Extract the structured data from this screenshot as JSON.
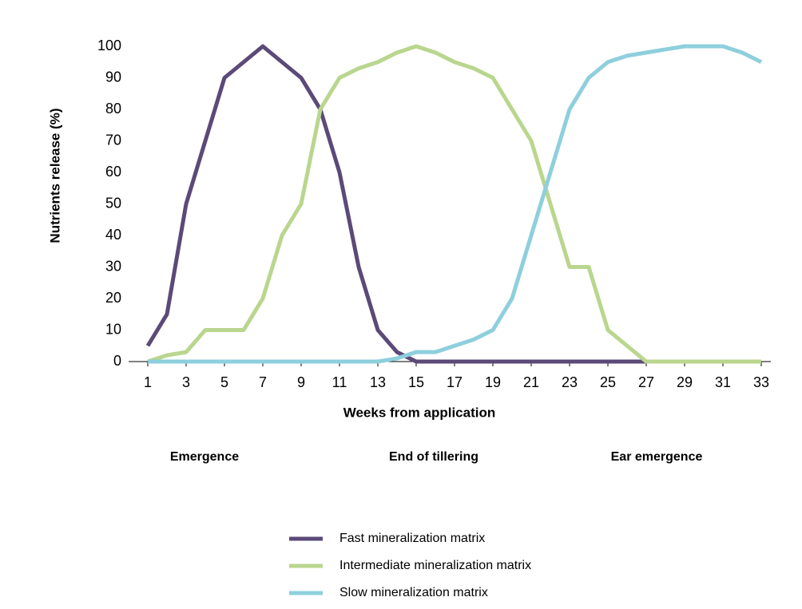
{
  "chart_data": {
    "type": "line",
    "x": [
      1,
      2,
      3,
      4,
      5,
      6,
      7,
      8,
      9,
      10,
      11,
      12,
      13,
      14,
      15,
      16,
      17,
      18,
      19,
      20,
      21,
      22,
      23,
      24,
      25,
      26,
      27,
      28,
      29,
      30,
      31,
      32,
      33
    ],
    "series": [
      {
        "name": "Fast mineralization matrix",
        "color": "#5b4a78",
        "values": [
          5,
          15,
          50,
          70,
          90,
          95,
          100,
          95,
          90,
          80,
          60,
          30,
          10,
          3,
          0,
          0,
          0,
          0,
          0,
          0,
          0,
          0,
          0,
          0,
          0,
          0,
          0,
          null,
          null,
          null,
          null,
          null,
          null
        ]
      },
      {
        "name": "Intermediate mineralization matrix",
        "color": "#b9d68e",
        "values": [
          0,
          2,
          3,
          10,
          10,
          10,
          20,
          40,
          50,
          80,
          90,
          93,
          95,
          98,
          100,
          98,
          95,
          93,
          90,
          80,
          70,
          50,
          30,
          30,
          10,
          5,
          0,
          0,
          0,
          0,
          0,
          0,
          0
        ]
      },
      {
        "name": "Slow mineralization matrix",
        "color": "#8ecfdd",
        "values": [
          0,
          0,
          0,
          0,
          0,
          0,
          0,
          0,
          0,
          0,
          0,
          0,
          0,
          1,
          3,
          3,
          5,
          7,
          10,
          20,
          40,
          60,
          80,
          90,
          95,
          97,
          98,
          99,
          100,
          100,
          100,
          98,
          95
        ]
      }
    ],
    "xlim": [
      1,
      33
    ],
    "xticks": [
      1,
      3,
      5,
      7,
      9,
      11,
      13,
      15,
      17,
      19,
      21,
      23,
      25,
      27,
      29,
      31,
      33
    ],
    "ylim": [
      0,
      100
    ],
    "yticks": [
      0,
      10,
      20,
      30,
      40,
      50,
      60,
      70,
      80,
      90,
      100
    ],
    "x_label": "Weeks from application",
    "y_label": "Nutrients release (%)",
    "annotations": [
      "Emergence",
      "End of tillering",
      "Ear emergence"
    ],
    "grid": false,
    "legend": "bottom"
  }
}
